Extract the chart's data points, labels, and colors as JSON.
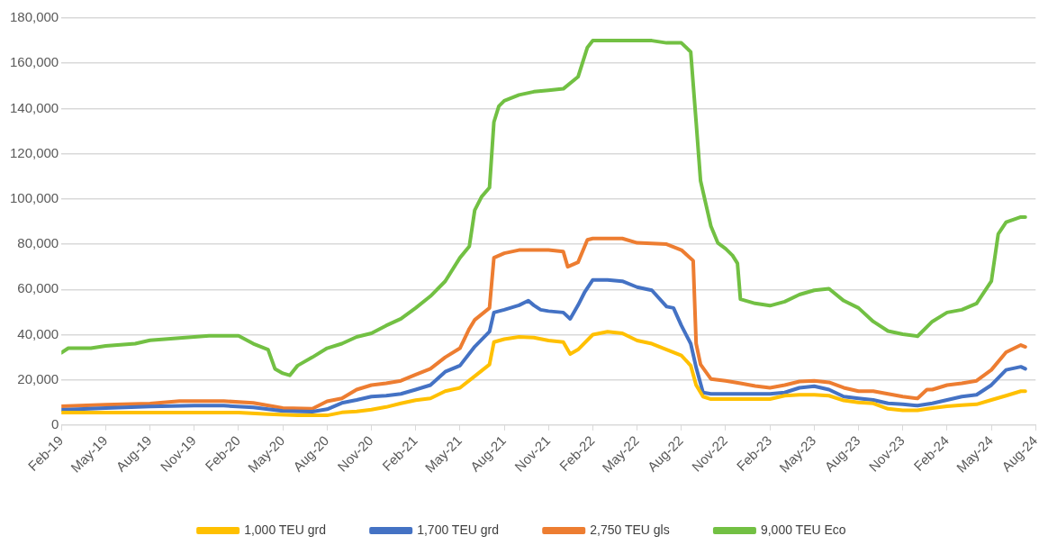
{
  "chart_data": {
    "type": "line",
    "legend": "bottom",
    "grid": "y",
    "xlim": [
      "2019-02",
      "2024-08"
    ],
    "ylim": [
      0,
      180000
    ],
    "yticks": [
      0,
      {
        "value": 20000,
        "label": "20,000"
      },
      {
        "value": 40000,
        "label": "40,000"
      },
      {
        "value": 60000,
        "label": "60,000"
      },
      {
        "value": 80000,
        "label": "80,000"
      },
      {
        "value": 100000,
        "label": "100,000"
      },
      {
        "value": 120000,
        "label": "120,000"
      },
      {
        "value": 140000,
        "label": "140,000"
      },
      {
        "value": 160000,
        "label": "160,000"
      },
      {
        "value": 180000,
        "label": "180,000"
      }
    ],
    "xticks": [
      {
        "value": "2019-02",
        "label": "Feb-19"
      },
      {
        "value": "2019-05",
        "label": "May-19"
      },
      {
        "value": "2019-08",
        "label": "Aug-19"
      },
      {
        "value": "2019-11",
        "label": "Nov-19"
      },
      {
        "value": "2020-02",
        "label": "Feb-20"
      },
      {
        "value": "2020-05",
        "label": "May-20"
      },
      {
        "value": "2020-08",
        "label": "Aug-20"
      },
      {
        "value": "2020-11",
        "label": "Nov-20"
      },
      {
        "value": "2021-02",
        "label": "Feb-21"
      },
      {
        "value": "2021-05",
        "label": "May-21"
      },
      {
        "value": "2021-08",
        "label": "Aug-21"
      },
      {
        "value": "2021-11",
        "label": "Nov-21"
      },
      {
        "value": "2022-02",
        "label": "Feb-22"
      },
      {
        "value": "2022-05",
        "label": "May-22"
      },
      {
        "value": "2022-08",
        "label": "Aug-22"
      },
      {
        "value": "2022-11",
        "label": "Nov-22"
      },
      {
        "value": "2023-02",
        "label": "Feb-23"
      },
      {
        "value": "2023-05",
        "label": "May-23"
      },
      {
        "value": "2023-08",
        "label": "Aug-23"
      },
      {
        "value": "2023-11",
        "label": "Nov-23"
      },
      {
        "value": "2024-02",
        "label": "Feb-24"
      },
      {
        "value": "2024-05",
        "label": "May-24"
      },
      {
        "value": "2024-08",
        "label": "Aug-24"
      }
    ],
    "series": [
      {
        "name": "1,000 TEU grd",
        "color": "#ffc000",
        "x": [
          "2019-02",
          "2019-08",
          "2020-02",
          "2020-04",
          "2020-06",
          "2020-08",
          "2020-09",
          "2020-10",
          "2020-11",
          "2020-12",
          "2021-01",
          "2021-02",
          "2021-03",
          "2021-04",
          "2021-05",
          "2021-06",
          "2021-07",
          "2021-07-10",
          "2021-08",
          "2021-09",
          "2021-10",
          "2021-11",
          "2021-12",
          "2021-12-15",
          "2022-01",
          "2022-02",
          "2022-03",
          "2022-04",
          "2022-05",
          "2022-06",
          "2022-07",
          "2022-08",
          "2022-08-20",
          "2022-09",
          "2022-09-15",
          "2022-10",
          "2023-02",
          "2023-03",
          "2023-04",
          "2023-05",
          "2023-06",
          "2023-07",
          "2023-08",
          "2023-09",
          "2023-10",
          "2023-11",
          "2023-12",
          "2024-01",
          "2024-02",
          "2024-03",
          "2024-04",
          "2024-05",
          "2024-06",
          "2024-07",
          "2024-07-10"
        ],
        "values": [
          5500,
          5500,
          5500,
          4800,
          4300,
          4300,
          5600,
          6000,
          6800,
          8000,
          9600,
          11000,
          11800,
          15000,
          16500,
          21600,
          26800,
          36700,
          38000,
          39000,
          38700,
          37400,
          36700,
          31400,
          33400,
          40000,
          41300,
          40600,
          37400,
          36000,
          33400,
          30800,
          26300,
          17700,
          12600,
          11500,
          11500,
          13000,
          13400,
          13400,
          13000,
          10900,
          10000,
          9600,
          7200,
          6500,
          6500,
          7500,
          8300,
          8800,
          9200,
          11100,
          13000,
          15000,
          15000
        ]
      },
      {
        "name": "1,700 TEU grd",
        "color": "#4472c4",
        "x": [
          "2019-02",
          "2019-05",
          "2019-08",
          "2019-11",
          "2020-01",
          "2020-03",
          "2020-05",
          "2020-07",
          "2020-08",
          "2020-09",
          "2020-10",
          "2020-11",
          "2020-12",
          "2021-01",
          "2021-02",
          "2021-03",
          "2021-04",
          "2021-05",
          "2021-06",
          "2021-07",
          "2021-07-10",
          "2021-08",
          "2021-09",
          "2021-09-20",
          "2021-10",
          "2021-10-15",
          "2021-11",
          "2021-12",
          "2021-12-15",
          "2022-01",
          "2022-01-15",
          "2022-02",
          "2022-03",
          "2022-04",
          "2022-05",
          "2022-06",
          "2022-07",
          "2022-07-15",
          "2022-08",
          "2022-08-20",
          "2022-09",
          "2022-09-15",
          "2022-10",
          "2023-02",
          "2023-03",
          "2023-04",
          "2023-05",
          "2023-06",
          "2023-07",
          "2023-08",
          "2023-09",
          "2023-10",
          "2023-11",
          "2023-12",
          "2024-01",
          "2024-02",
          "2024-03",
          "2024-04",
          "2024-05",
          "2024-06",
          "2024-07",
          "2024-07-10"
        ],
        "values": [
          6700,
          7500,
          8200,
          8600,
          8600,
          7800,
          6200,
          5900,
          7000,
          9800,
          11100,
          12600,
          13000,
          13800,
          15700,
          17700,
          23600,
          26300,
          34700,
          41300,
          49800,
          51000,
          53000,
          55000,
          53000,
          51000,
          50400,
          49800,
          47000,
          53000,
          59000,
          64200,
          64200,
          63600,
          61000,
          59600,
          52400,
          51800,
          44000,
          36000,
          25500,
          14400,
          13800,
          13800,
          14400,
          16500,
          17200,
          15700,
          12600,
          11800,
          11100,
          9600,
          9200,
          8600,
          9600,
          11100,
          12600,
          13400,
          17700,
          24400,
          25800,
          24900
        ]
      },
      {
        "name": "2,750 TEU gls",
        "color": "#ed7d31",
        "x": [
          "2019-02",
          "2019-05",
          "2019-08",
          "2019-10",
          "2020-01",
          "2020-03",
          "2020-05",
          "2020-07",
          "2020-08",
          "2020-09",
          "2020-10",
          "2020-11",
          "2020-12",
          "2021-01",
          "2021-02",
          "2021-03",
          "2021-04",
          "2021-05",
          "2021-05-20",
          "2021-06",
          "2021-07",
          "2021-07-10",
          "2021-08",
          "2021-09",
          "2021-11",
          "2021-12",
          "2021-12-10",
          "2022-01",
          "2022-01-20",
          "2022-02",
          "2022-04",
          "2022-05",
          "2022-07",
          "2022-08",
          "2022-08-25",
          "2022-09",
          "2022-09-10",
          "2022-10",
          "2022-11",
          "2022-12",
          "2023-01",
          "2023-02",
          "2023-03",
          "2023-04",
          "2023-05",
          "2023-06",
          "2023-07",
          "2023-08",
          "2023-09",
          "2023-10",
          "2023-11",
          "2023-12",
          "2023-12-20",
          "2024-01",
          "2024-02",
          "2024-03",
          "2024-04",
          "2024-05",
          "2024-06",
          "2024-07",
          "2024-07-10"
        ],
        "values": [
          8300,
          9000,
          9500,
          10600,
          10600,
          9800,
          7500,
          7200,
          10500,
          11800,
          15700,
          17700,
          18500,
          19600,
          22300,
          24900,
          30000,
          34000,
          42600,
          46500,
          51800,
          74000,
          76000,
          77400,
          77400,
          76700,
          70000,
          72000,
          81900,
          82500,
          82500,
          80600,
          80000,
          77400,
          72700,
          36000,
          26800,
          20400,
          19600,
          18500,
          17300,
          16500,
          17700,
          19300,
          19600,
          18900,
          16500,
          15000,
          15000,
          13800,
          12600,
          11800,
          15700,
          15700,
          17700,
          18500,
          19600,
          24400,
          32200,
          35400,
          34600
        ]
      },
      {
        "name": "9,000 TEU Eco",
        "color": "#72c043",
        "x": [
          "2019-02",
          "2019-02-15",
          "2019-04",
          "2019-05",
          "2019-06",
          "2019-07",
          "2019-08",
          "2019-09",
          "2019-10",
          "2019-12",
          "2020-02",
          "2020-03",
          "2020-04",
          "2020-04-15",
          "2020-05",
          "2020-05-15",
          "2020-06",
          "2020-07",
          "2020-08",
          "2020-09",
          "2020-10",
          "2020-11",
          "2020-12",
          "2021-01",
          "2021-02",
          "2021-03",
          "2021-04",
          "2021-05",
          "2021-05-20",
          "2021-06",
          "2021-06-15",
          "2021-07",
          "2021-07-10",
          "2021-07-20",
          "2021-08",
          "2021-09",
          "2021-10",
          "2021-11",
          "2021-12",
          "2022-01",
          "2022-01-20",
          "2022-02",
          "2022-06",
          "2022-07",
          "2022-08",
          "2022-08-20",
          "2022-09",
          "2022-09-10",
          "2022-10",
          "2022-10-15",
          "2022-11",
          "2022-11-15",
          "2022-11-25",
          "2022-12",
          "2023-01",
          "2023-02",
          "2023-03",
          "2023-04",
          "2023-05",
          "2023-06",
          "2023-07",
          "2023-08",
          "2023-09",
          "2023-10",
          "2023-11",
          "2023-12",
          "2024-01",
          "2024-02",
          "2024-03",
          "2024-04",
          "2024-05",
          "2024-05-15",
          "2024-06",
          "2024-07",
          "2024-07-10"
        ],
        "values": [
          32000,
          34000,
          34000,
          35000,
          35500,
          36000,
          37500,
          38000,
          38500,
          39500,
          39500,
          36000,
          33400,
          24900,
          22900,
          22000,
          26300,
          30000,
          34000,
          36000,
          39000,
          40600,
          44000,
          47000,
          51800,
          57000,
          63600,
          74000,
          79000,
          95000,
          101000,
          105000,
          134000,
          141000,
          143400,
          146000,
          147400,
          148000,
          148700,
          154000,
          167000,
          170000,
          170000,
          169000,
          169000,
          165000,
          134000,
          108000,
          88000,
          80600,
          78000,
          75000,
          71500,
          55700,
          53800,
          52800,
          54600,
          57700,
          59600,
          60300,
          55000,
          51800,
          45800,
          41600,
          40200,
          39300,
          45800,
          49800,
          51000,
          53800,
          63600,
          84500,
          89700,
          92000,
          92000
        ]
      }
    ]
  }
}
